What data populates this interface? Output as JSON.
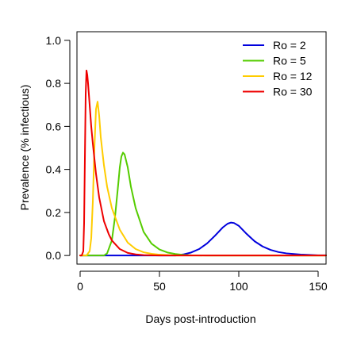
{
  "chart_data": {
    "type": "line",
    "title": "",
    "xlabel": "Days post-introduction",
    "ylabel": "Prevalence (% infectious)",
    "xlim": [
      -2,
      155
    ],
    "ylim": [
      -0.04,
      1.04
    ],
    "x_ticks": [
      0,
      50,
      100,
      150
    ],
    "y_ticks": [
      0.0,
      0.2,
      0.4,
      0.6,
      0.8,
      1.0
    ],
    "y_tick_labels": [
      "0.0",
      "0.2",
      "0.4",
      "0.6",
      "0.8",
      "1.0"
    ],
    "grid": false,
    "legend_position": "top-right",
    "series": [
      {
        "name": "Ro = 2",
        "color": "#0000dd",
        "x": [
          0,
          60,
          65,
          70,
          75,
          80,
          85,
          90,
          93,
          95,
          97,
          100,
          105,
          110,
          115,
          120,
          125,
          130,
          140,
          150,
          155
        ],
        "y": [
          0.0,
          0.0,
          0.005,
          0.014,
          0.03,
          0.056,
          0.092,
          0.131,
          0.148,
          0.153,
          0.151,
          0.138,
          0.1,
          0.066,
          0.042,
          0.026,
          0.016,
          0.01,
          0.004,
          0.001,
          0.001
        ]
      },
      {
        "name": "Ro = 5",
        "color": "#55cc00",
        "x": [
          0,
          15,
          17,
          20,
          22,
          24,
          25,
          26,
          27,
          28,
          30,
          32,
          35,
          40,
          45,
          50,
          55,
          60,
          65,
          70,
          80,
          155
        ],
        "y": [
          0.0,
          0.0,
          0.01,
          0.07,
          0.18,
          0.33,
          0.41,
          0.46,
          0.478,
          0.47,
          0.41,
          0.32,
          0.22,
          0.11,
          0.055,
          0.028,
          0.014,
          0.007,
          0.003,
          0.001,
          0.0,
          0.0
        ]
      },
      {
        "name": "Ro = 12",
        "color": "#ffcc00",
        "x": [
          0,
          4,
          6,
          7,
          8,
          9,
          10,
          11,
          12,
          13,
          15,
          17,
          20,
          25,
          30,
          35,
          40,
          45,
          50,
          60,
          155
        ],
        "y": [
          0.0,
          0.0,
          0.02,
          0.08,
          0.25,
          0.5,
          0.68,
          0.715,
          0.65,
          0.55,
          0.42,
          0.32,
          0.22,
          0.12,
          0.06,
          0.03,
          0.015,
          0.008,
          0.004,
          0.0,
          0.0
        ]
      },
      {
        "name": "Ro = 30",
        "color": "#ee0000",
        "x": [
          0,
          1,
          2,
          2.5,
          3,
          3.5,
          4,
          4.5,
          5,
          6,
          7,
          8,
          10,
          12,
          15,
          18,
          20,
          25,
          30,
          35,
          40,
          50,
          155
        ],
        "y": [
          0.0,
          0.0,
          0.02,
          0.15,
          0.45,
          0.75,
          0.86,
          0.84,
          0.8,
          0.7,
          0.6,
          0.52,
          0.38,
          0.27,
          0.16,
          0.1,
          0.07,
          0.03,
          0.012,
          0.005,
          0.002,
          0.0,
          0.0
        ]
      }
    ]
  }
}
